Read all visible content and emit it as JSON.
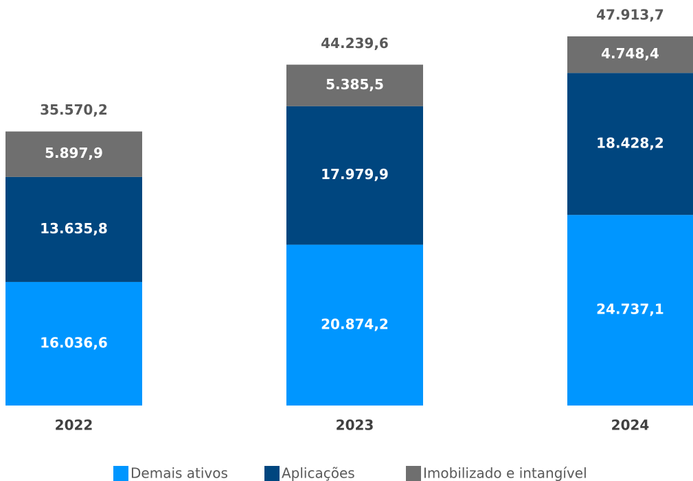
{
  "chart_data": {
    "type": "stacked_bar",
    "categories": [
      "2022",
      "2023",
      "2024"
    ],
    "series": [
      {
        "name": "Demais ativos",
        "color": "#0096ff",
        "values": [
          16036.6,
          20874.2,
          24737.1
        ],
        "value_labels": [
          "16.036,6",
          "20.874,2",
          "24.737,1"
        ]
      },
      {
        "name": "Aplicações",
        "color": "#00467f",
        "values": [
          13635.8,
          17979.9,
          18428.2
        ],
        "value_labels": [
          "13.635,8",
          "17.979,9",
          "18.428,2"
        ]
      },
      {
        "name": "Imobilizado e intangível",
        "color": "#6f6f6f",
        "values": [
          5897.9,
          5385.5,
          4748.4
        ],
        "value_labels": [
          "5.897,9",
          "5.385,5",
          "4.748,4"
        ]
      }
    ],
    "totals": [
      35570.2,
      44239.6,
      47913.7
    ],
    "total_labels": [
      "35.570,2",
      "44.239,6",
      "47.913,7"
    ]
  }
}
